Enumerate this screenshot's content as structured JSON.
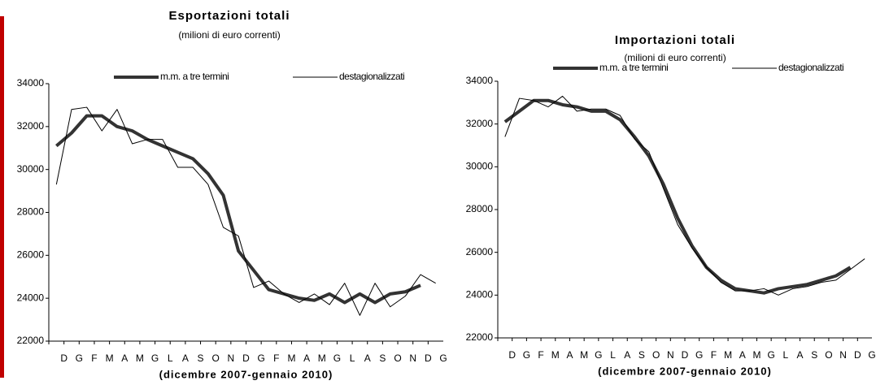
{
  "chart_data": [
    {
      "type": "line",
      "title": "Esportazioni totali",
      "subtitle": "(milioni di euro correnti)",
      "x_label": "(dicembre 2007-gennaio 2010)",
      "categories": [
        "D",
        "G",
        "F",
        "M",
        "A",
        "M",
        "G",
        "L",
        "A",
        "S",
        "O",
        "N",
        "D",
        "G",
        "F",
        "M",
        "A",
        "M",
        "G",
        "L",
        "A",
        "S",
        "O",
        "N",
        "D",
        "G"
      ],
      "ylim": [
        22000,
        34000
      ],
      "yticks": [
        22000,
        24000,
        26000,
        28000,
        30000,
        32000,
        34000
      ],
      "series": [
        {
          "name": "m.m. a tre termini",
          "color": "#333333",
          "values": [
            31100,
            31700,
            32500,
            32500,
            32000,
            31800,
            31400,
            31100,
            30800,
            30500,
            29800,
            28800,
            26200,
            25300,
            24400,
            24200,
            24000,
            23900,
            24200,
            23800,
            24200,
            23800,
            24200,
            24300,
            24600,
            null
          ]
        },
        {
          "name": "destagionalizzati",
          "color": "#000000",
          "values": [
            29300,
            32800,
            32900,
            31800,
            32800,
            31200,
            31400,
            31400,
            30100,
            30100,
            29300,
            27300,
            26900,
            24500,
            24800,
            24200,
            23800,
            24200,
            23700,
            24700,
            23200,
            24700,
            23600,
            24100,
            25100,
            24700
          ]
        }
      ]
    },
    {
      "type": "line",
      "title": "Importazioni totali",
      "subtitle": "(milioni di euro correnti)",
      "x_label": "(dicembre 2007-gennaio 2010)",
      "categories": [
        "D",
        "G",
        "F",
        "M",
        "A",
        "M",
        "G",
        "L",
        "A",
        "S",
        "O",
        "N",
        "D",
        "G",
        "F",
        "M",
        "A",
        "M",
        "G",
        "L",
        "A",
        "S",
        "O",
        "N",
        "D",
        "G"
      ],
      "ylim": [
        22000,
        34000
      ],
      "yticks": [
        22000,
        24000,
        26000,
        28000,
        30000,
        32000,
        34000
      ],
      "series": [
        {
          "name": "m.m. a tre termini",
          "color": "#333333",
          "values": [
            32100,
            32600,
            33100,
            33100,
            32900,
            32800,
            32600,
            32600,
            32200,
            31400,
            30500,
            29200,
            27600,
            26300,
            25300,
            24700,
            24300,
            24200,
            24100,
            24300,
            24400,
            24500,
            24700,
            24900,
            25300,
            null
          ]
        },
        {
          "name": "destagionalizzati",
          "color": "#000000",
          "values": [
            31400,
            33200,
            33100,
            32800,
            33300,
            32600,
            32700,
            32700,
            32400,
            31300,
            30700,
            29000,
            27300,
            26200,
            25300,
            24600,
            24200,
            24200,
            24300,
            24000,
            24300,
            24400,
            24600,
            24700,
            25200,
            25700
          ]
        }
      ]
    }
  ]
}
